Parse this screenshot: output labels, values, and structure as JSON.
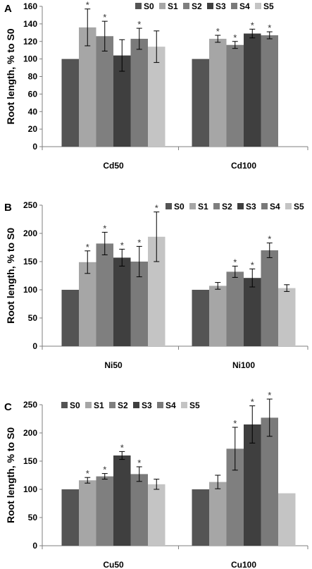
{
  "chart_data": [
    {
      "panel_letter": "A",
      "type": "bar",
      "ylabel": "Root length, % to S0",
      "ylim": [
        0,
        160
      ],
      "yticks": [
        "0",
        "20",
        "40",
        "60",
        "80",
        "100",
        "120",
        "140",
        "160"
      ],
      "legend_position": "top-right",
      "categories": [
        "Cd50",
        "Cd100"
      ],
      "series": [
        {
          "name": "S0",
          "color": "#545454",
          "values": [
            100,
            100
          ],
          "errors": [
            0,
            0
          ],
          "significant": [
            false,
            false
          ]
        },
        {
          "name": "S1",
          "color": "#a6a6a6",
          "values": [
            136,
            123
          ],
          "errors": [
            21,
            4
          ],
          "significant": [
            true,
            true
          ]
        },
        {
          "name": "S2",
          "color": "#7f7f7f",
          "values": [
            126,
            116
          ],
          "errors": [
            17,
            4
          ],
          "significant": [
            true,
            true
          ]
        },
        {
          "name": "S3",
          "color": "#3f3f3f",
          "values": [
            104,
            129
          ],
          "errors": [
            18,
            5
          ],
          "significant": [
            false,
            true
          ]
        },
        {
          "name": "S4",
          "color": "#7a7a7a",
          "values": [
            123,
            127
          ],
          "errors": [
            12,
            4
          ],
          "significant": [
            true,
            true
          ]
        },
        {
          "name": "S5",
          "color": "#c4c4c4",
          "values": [
            114,
            null
          ],
          "errors": [
            18,
            0
          ],
          "significant": [
            false,
            false
          ]
        }
      ]
    },
    {
      "panel_letter": "B",
      "type": "bar",
      "ylabel": "Root length, % to S0",
      "ylim": [
        0,
        250
      ],
      "yticks": [
        "0",
        "50",
        "100",
        "150",
        "200",
        "250"
      ],
      "legend_position": "top-right",
      "categories": [
        "Ni50",
        "Ni100"
      ],
      "series": [
        {
          "name": "S0",
          "color": "#545454",
          "values": [
            100,
            100
          ],
          "errors": [
            0,
            0
          ],
          "significant": [
            false,
            false
          ]
        },
        {
          "name": "S1",
          "color": "#a6a6a6",
          "values": [
            149,
            107
          ],
          "errors": [
            20,
            6
          ],
          "significant": [
            true,
            false
          ]
        },
        {
          "name": "S2",
          "color": "#7f7f7f",
          "values": [
            182,
            132
          ],
          "errors": [
            20,
            10
          ],
          "significant": [
            true,
            true
          ]
        },
        {
          "name": "S3",
          "color": "#3f3f3f",
          "values": [
            157,
            121
          ],
          "errors": [
            15,
            16
          ],
          "significant": [
            true,
            true
          ]
        },
        {
          "name": "S4",
          "color": "#7a7a7a",
          "values": [
            150,
            170
          ],
          "errors": [
            27,
            13
          ],
          "significant": [
            true,
            true
          ]
        },
        {
          "name": "S5",
          "color": "#c4c4c4",
          "values": [
            194,
            103
          ],
          "errors": [
            44,
            6
          ],
          "significant": [
            true,
            false
          ]
        }
      ]
    },
    {
      "panel_letter": "C",
      "type": "bar",
      "ylabel": "Root length, % to S0",
      "ylim": [
        0,
        250
      ],
      "yticks": [
        "0",
        "50",
        "100",
        "150",
        "200",
        "250"
      ],
      "legend_position": "top-left",
      "categories": [
        "Cu50",
        "Cu100"
      ],
      "series": [
        {
          "name": "S0",
          "color": "#545454",
          "values": [
            100,
            100
          ],
          "errors": [
            0,
            0
          ],
          "significant": [
            false,
            false
          ]
        },
        {
          "name": "S1",
          "color": "#a6a6a6",
          "values": [
            116,
            113
          ],
          "errors": [
            5,
            12
          ],
          "significant": [
            true,
            false
          ]
        },
        {
          "name": "S2",
          "color": "#7f7f7f",
          "values": [
            123,
            172
          ],
          "errors": [
            5,
            38
          ],
          "significant": [
            true,
            true
          ]
        },
        {
          "name": "S3",
          "color": "#3f3f3f",
          "values": [
            160,
            215
          ],
          "errors": [
            7,
            33
          ],
          "significant": [
            true,
            true
          ]
        },
        {
          "name": "S4",
          "color": "#7a7a7a",
          "values": [
            127,
            227
          ],
          "errors": [
            13,
            33
          ],
          "significant": [
            true,
            true
          ]
        },
        {
          "name": "S5",
          "color": "#c4c4c4",
          "values": [
            109,
            93
          ],
          "errors": [
            9,
            0
          ],
          "significant": [
            false,
            false
          ]
        }
      ]
    }
  ],
  "significance_marker": "*"
}
